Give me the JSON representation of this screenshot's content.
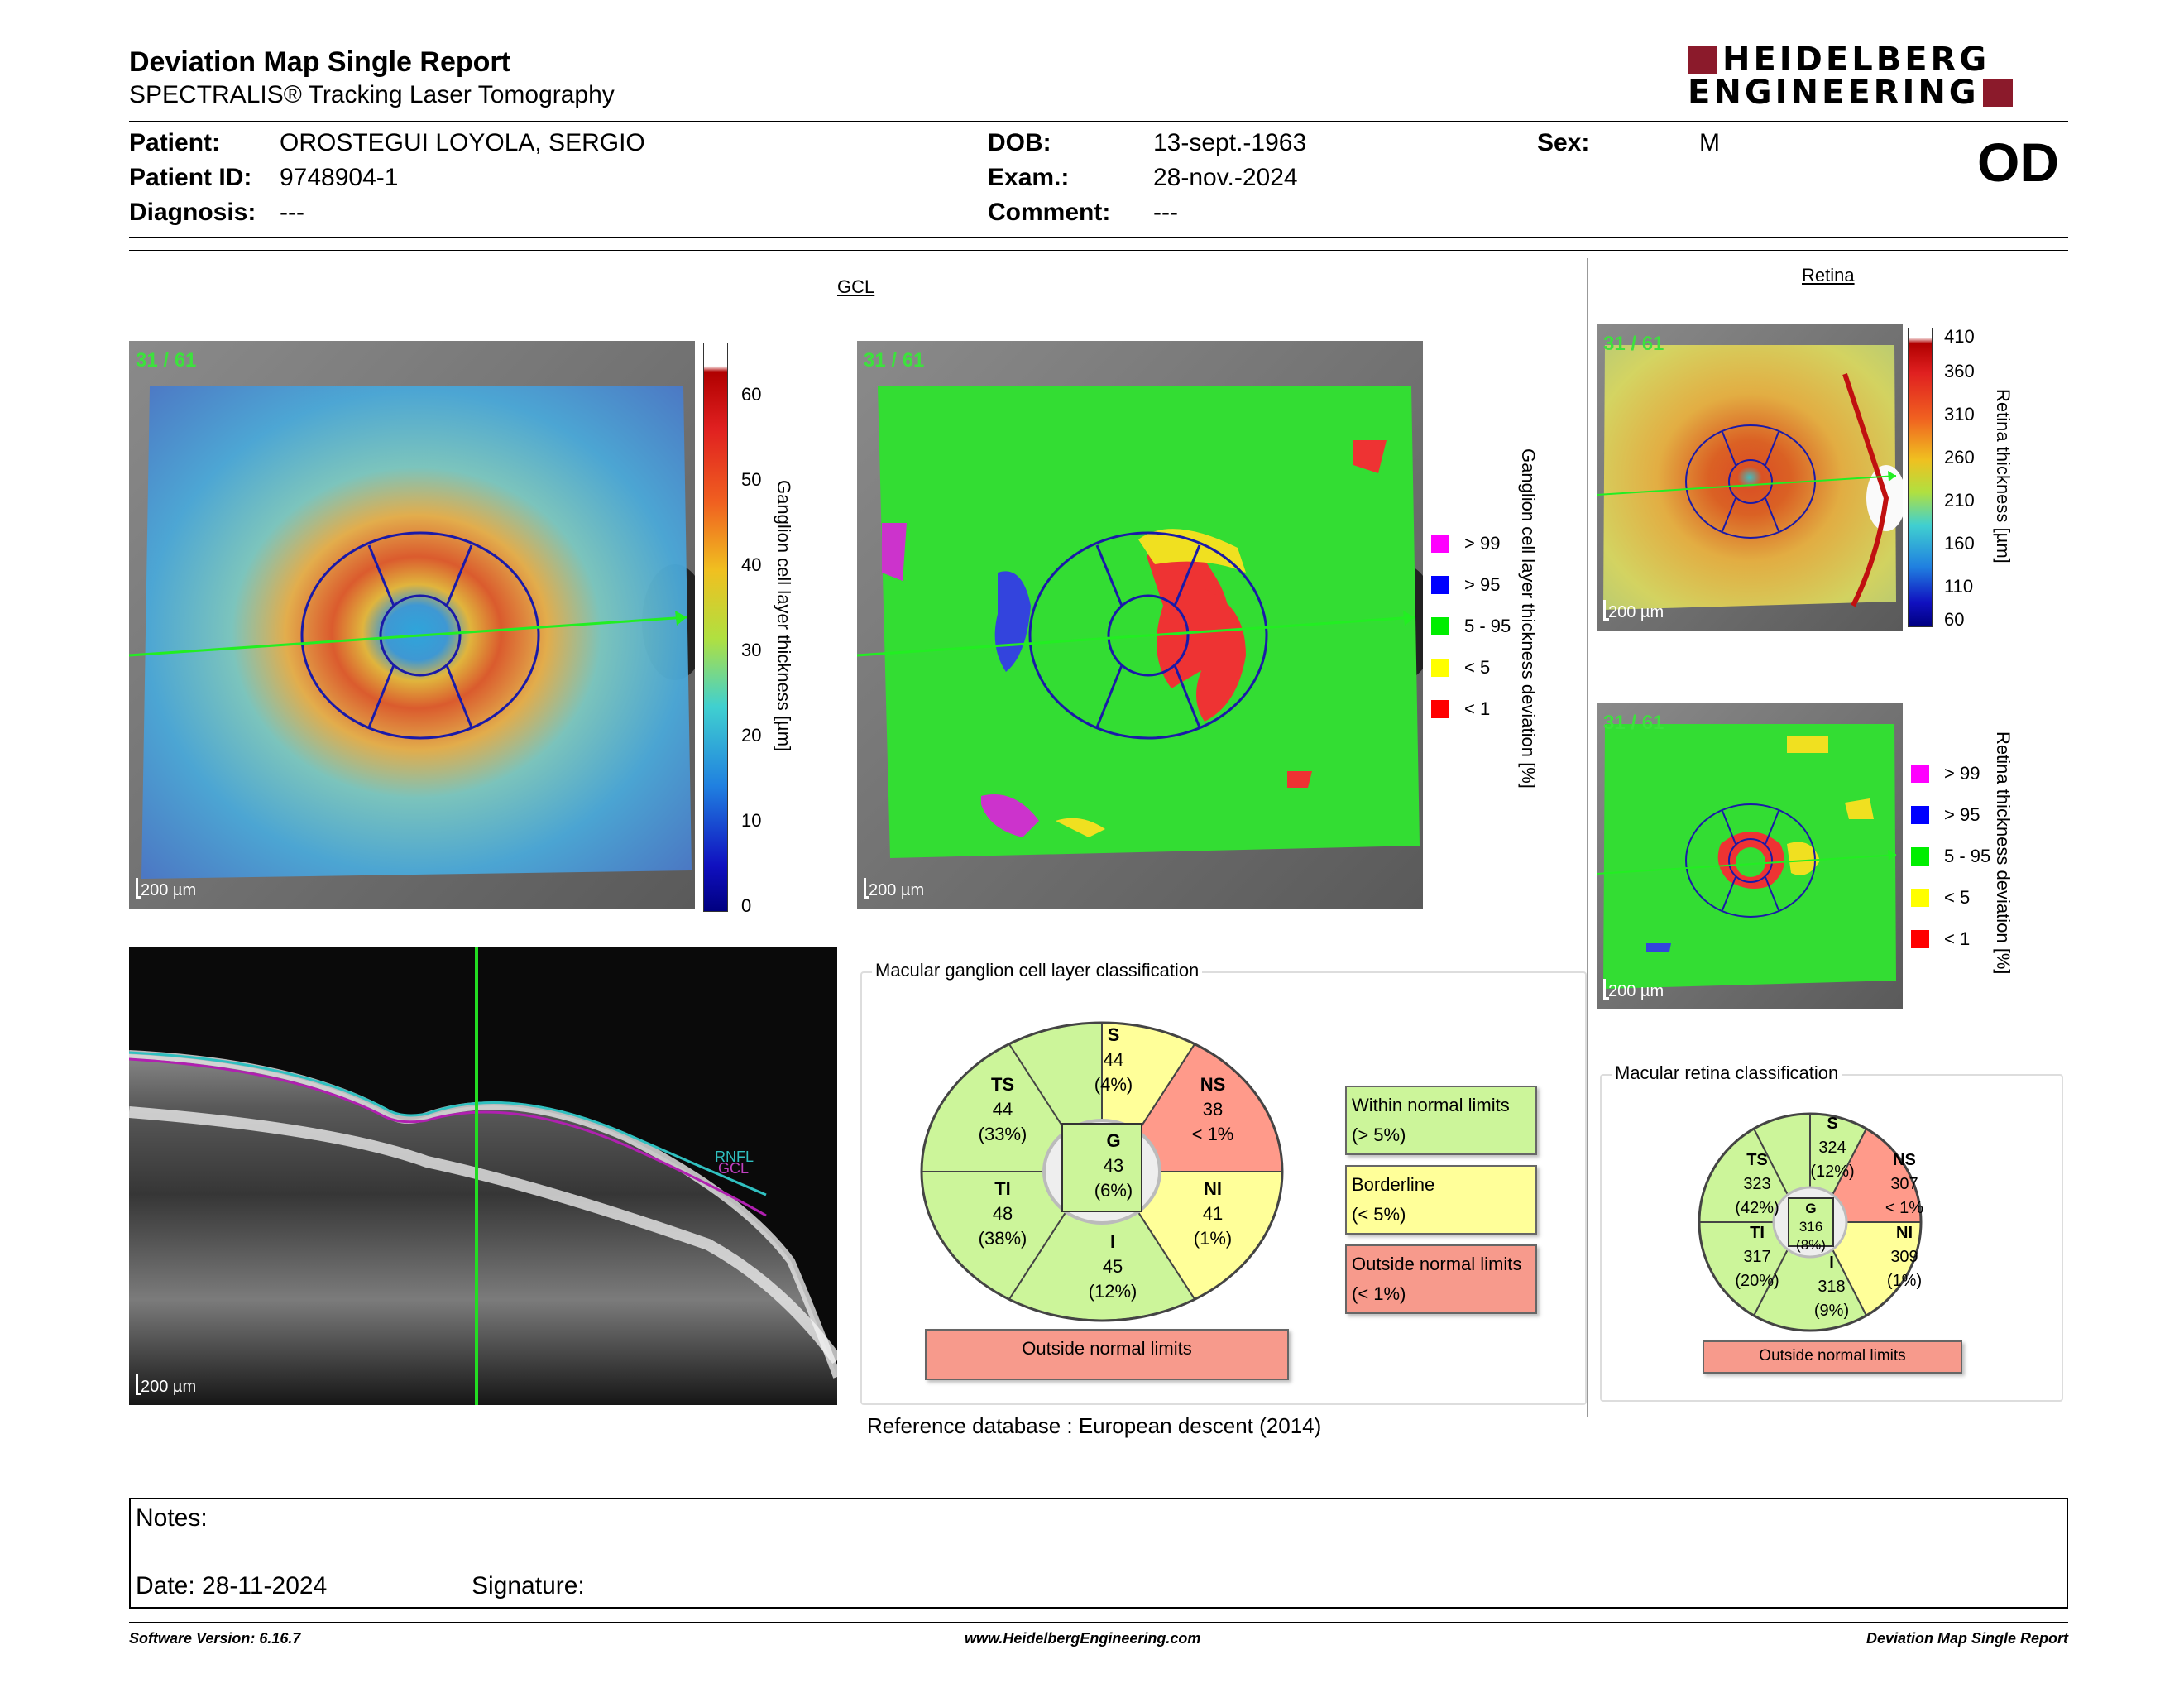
{
  "report": {
    "title": "Deviation Map Single Report",
    "subtitle": "SPECTRALIS® Tracking Laser Tomography",
    "logo_line1": "HEIDELBERG",
    "logo_line2": "ENGINEERING",
    "eye": "OD"
  },
  "patient": {
    "patient_label": "Patient:",
    "patient_value": "OROSTEGUI LOYOLA, SERGIO",
    "id_label": "Patient ID:",
    "id_value": "9748904-1",
    "diagnosis_label": "Diagnosis:",
    "diagnosis_value": "---",
    "dob_label": "DOB:",
    "dob_value": "13-sept.-1963",
    "exam_label": "Exam.:",
    "exam_value": "28-nov.-2024",
    "comment_label": "Comment:",
    "comment_value": "---",
    "sex_label": "Sex:",
    "sex_value": "M"
  },
  "gcl": {
    "section_title": "GCL",
    "frame_badge": "31 / 61",
    "scale": "200 µm",
    "thickness_label": "Ganglion cell layer thickness [µm]",
    "thickness_ticks": [
      "60",
      "50",
      "40",
      "30",
      "20",
      "10",
      "0"
    ],
    "deviation_label": "Ganglion cell layer thickness deviation [%]",
    "legend": [
      {
        "label": "> 99",
        "color": "#ff00ff"
      },
      {
        "label": "> 95",
        "color": "#0000ff"
      },
      {
        "label": "5 - 95",
        "color": "#00ee00"
      },
      {
        "label": "< 5",
        "color": "#ffff00"
      },
      {
        "label": "< 1",
        "color": "#ff0000"
      }
    ]
  },
  "retina": {
    "section_title": "Retina",
    "frame_badge": "31 / 61",
    "scale": "200 µm",
    "thickness_label": "Retina thickness [µm]",
    "thickness_ticks": [
      "410",
      "360",
      "310",
      "260",
      "210",
      "160",
      "110",
      "60"
    ],
    "deviation_label": "Retina thickness deviation [%]",
    "legend": [
      {
        "label": "> 99",
        "color": "#ff00ff"
      },
      {
        "label": "> 95",
        "color": "#0000ff"
      },
      {
        "label": "5 - 95",
        "color": "#00ee00"
      },
      {
        "label": "< 5",
        "color": "#ffff00"
      },
      {
        "label": "< 1",
        "color": "#ff0000"
      }
    ]
  },
  "oct": {
    "scale": "200 µm",
    "layer_label1": "RNFL",
    "layer_label2": "GCL"
  },
  "gcl_classification": {
    "title": "Macular ganglion cell layer classification",
    "S": {
      "name": "S",
      "value": "44",
      "pct": "(4%)",
      "color": "#ffff99"
    },
    "NS": {
      "name": "NS",
      "value": "38",
      "pct": "< 1%",
      "color": "#ff9a8a"
    },
    "NI": {
      "name": "NI",
      "value": "41",
      "pct": "(1%)",
      "color": "#ffff99"
    },
    "I": {
      "name": "I",
      "value": "45",
      "pct": "(12%)",
      "color": "#ccf59a"
    },
    "TI": {
      "name": "TI",
      "value": "48",
      "pct": "(38%)",
      "color": "#ccf59a"
    },
    "TS": {
      "name": "TS",
      "value": "44",
      "pct": "(33%)",
      "color": "#ccf59a"
    },
    "G": {
      "name": "G",
      "value": "43",
      "pct": "(6%)",
      "color": "#ccf59a"
    },
    "result": "Outside normal limits",
    "result_color": "#f79a8c"
  },
  "classification_legend": [
    {
      "line1": "Within normal limits",
      "line2": "(> 5%)",
      "color": "#ccf59a"
    },
    {
      "line1": "Borderline",
      "line2": "(< 5%)",
      "color": "#ffff99"
    },
    {
      "line1": "Outside normal limits",
      "line2": "(< 1%)",
      "color": "#f79a8c"
    }
  ],
  "retina_classification": {
    "title": "Macular retina classification",
    "S": {
      "name": "S",
      "value": "324",
      "pct": "(12%)",
      "color": "#ccf59a"
    },
    "NS": {
      "name": "NS",
      "value": "307",
      "pct": "< 1%",
      "color": "#ff9a8a"
    },
    "NI": {
      "name": "NI",
      "value": "309",
      "pct": "(1%)",
      "color": "#ffff99"
    },
    "I": {
      "name": "I",
      "value": "318",
      "pct": "(9%)",
      "color": "#ccf59a"
    },
    "TI": {
      "name": "TI",
      "value": "317",
      "pct": "(20%)",
      "color": "#ccf59a"
    },
    "TS": {
      "name": "TS",
      "value": "323",
      "pct": "(42%)",
      "color": "#ccf59a"
    },
    "G": {
      "name": "G",
      "value": "316",
      "pct": "(8%)",
      "color": "#ccf59a"
    },
    "result": "Outside normal limits",
    "result_color": "#f79a8c"
  },
  "reference": {
    "label": "Reference database",
    "value": "European descent (2014)"
  },
  "notes": {
    "notes_label": "Notes:",
    "date_label": "Date: 28-11-2024",
    "signature_label": "Signature:"
  },
  "footer": {
    "software": "Software Version: 6.16.7",
    "website": "www.HeidelbergEngineering.com",
    "report_name": "Deviation Map Single Report"
  }
}
